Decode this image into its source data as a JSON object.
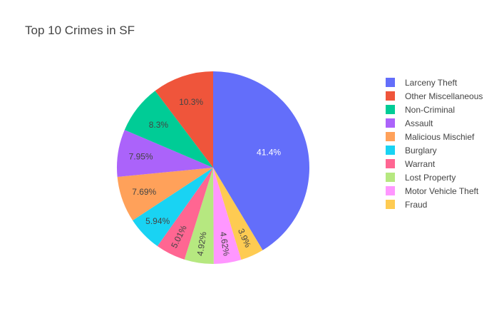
{
  "chart_data": {
    "type": "pie",
    "title": "Top 10 Crimes in SF",
    "legend_position": "right",
    "slices": [
      {
        "label": "Larceny Theft",
        "value": 41.4,
        "display": "41.4%",
        "color": "#636efa",
        "text_color": "#ffffff"
      },
      {
        "label": "Fraud",
        "value": 3.9,
        "display": "3.9%",
        "color": "#fecb52",
        "text_color": "#444444"
      },
      {
        "label": "Motor Vehicle Theft",
        "value": 4.62,
        "display": "4.62%",
        "color": "#ff97ff",
        "text_color": "#444444"
      },
      {
        "label": "Lost Property",
        "value": 4.92,
        "display": "4.92%",
        "color": "#b6e880",
        "text_color": "#444444"
      },
      {
        "label": "Warrant",
        "value": 5.01,
        "display": "5.01%",
        "color": "#ff6692",
        "text_color": "#444444"
      },
      {
        "label": "Burglary",
        "value": 5.94,
        "display": "5.94%",
        "color": "#19d3f3",
        "text_color": "#444444"
      },
      {
        "label": "Malicious Mischief",
        "value": 7.69,
        "display": "7.69%",
        "color": "#ffa15a",
        "text_color": "#444444"
      },
      {
        "label": "Assault",
        "value": 7.95,
        "display": "7.95%",
        "color": "#ab63fa",
        "text_color": "#444444"
      },
      {
        "label": "Non-Criminal",
        "value": 8.3,
        "display": "8.3%",
        "color": "#00cc96",
        "text_color": "#444444"
      },
      {
        "label": "Other Miscellaneous",
        "value": 10.3,
        "display": "10.3%",
        "color": "#ef553b",
        "text_color": "#444444"
      }
    ],
    "legend": [
      {
        "label": "Larceny Theft",
        "color": "#636efa"
      },
      {
        "label": "Other Miscellaneous",
        "color": "#ef553b"
      },
      {
        "label": "Non-Criminal",
        "color": "#00cc96"
      },
      {
        "label": "Assault",
        "color": "#ab63fa"
      },
      {
        "label": "Malicious Mischief",
        "color": "#ffa15a"
      },
      {
        "label": "Burglary",
        "color": "#19d3f3"
      },
      {
        "label": "Warrant",
        "color": "#ff6692"
      },
      {
        "label": "Lost Property",
        "color": "#b6e880"
      },
      {
        "label": "Motor Vehicle Theft",
        "color": "#ff97ff"
      },
      {
        "label": "Fraud",
        "color": "#fecb52"
      }
    ]
  }
}
